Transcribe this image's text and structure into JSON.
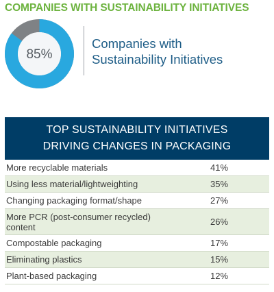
{
  "colors": {
    "title_green": "#6db33f",
    "donut_blue": "#29a8df",
    "donut_gray": "#7f8285",
    "center_bg": "#f4f6f8",
    "kpi_text": "#1e5d87",
    "header_bg": "#003d66",
    "row_alt": "#e7efdf"
  },
  "header": {
    "title": "COMPANIES WITH SUSTAINABILITY INITIATIVES"
  },
  "kpi": {
    "value": 85,
    "value_label": "85%",
    "label_line1": "Companies with",
    "label_line2": "Sustainability Initiatives"
  },
  "table": {
    "title_line1": "TOP SUSTAINABILITY INITIATIVES",
    "title_line2": "DRIVING CHANGES IN PACKAGING",
    "rows": [
      {
        "label": "More recyclable materials",
        "value": "41%"
      },
      {
        "label": "Using less material/lightweighting",
        "value": "35%"
      },
      {
        "label": "Changing packaging format/shape",
        "value": "27%"
      },
      {
        "label": "More PCR (post-consumer recycled) content",
        "value": "26%"
      },
      {
        "label": "Compostable packaging",
        "value": "17%"
      },
      {
        "label": "Eliminating plastics",
        "value": "15%"
      },
      {
        "label": "Plant-based packaging",
        "value": "12%"
      }
    ]
  },
  "chart_data": [
    {
      "type": "pie",
      "categories": [
        "Companies with Sustainability Initiatives",
        ""
      ],
      "values": [
        85,
        15
      ]
    },
    {
      "type": "table",
      "title": "TOP SUSTAINABILITY INITIATIVES DRIVING CHANGES IN PACKAGING",
      "categories": [
        "More recyclable materials",
        "Using less material/lightweighting",
        "Changing packaging format/shape",
        "More PCR (post-consumer recycled) content",
        "Compostable packaging",
        "Eliminating plastics",
        "Plant-based packaging"
      ],
      "values": [
        41,
        35,
        27,
        26,
        17,
        15,
        12
      ]
    }
  ]
}
